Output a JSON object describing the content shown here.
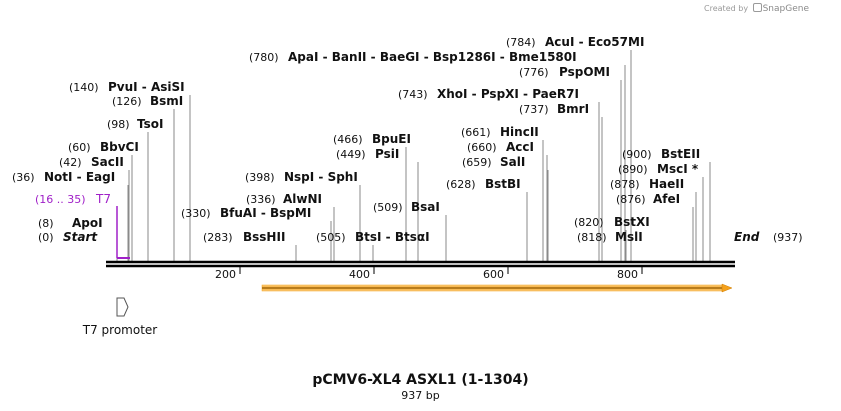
{
  "header": {
    "credit_text": "Created by",
    "brand": "SnapGene"
  },
  "map": {
    "title": "pCMV6-XL4 ASXL1 (1-1304)",
    "length_label": "937 bp",
    "start": {
      "label": "Start",
      "position": "(0)"
    },
    "end": {
      "label": "End",
      "position": "(937)"
    },
    "ticks": [
      "200",
      "400",
      "600",
      "800"
    ],
    "primer": {
      "range": "(16 .. 35)",
      "name": "T7"
    },
    "promoter": {
      "name": "T7 promoter"
    },
    "colors": {
      "primer": "#a020c8",
      "orf": "#f4a11c",
      "backbone": "#000000",
      "leader": "#8a8a8a"
    }
  },
  "sites": [
    {
      "pos": "(8)",
      "name": "ApoI"
    },
    {
      "pos": "(36)",
      "name": "NotI",
      "name2": "EagI"
    },
    {
      "pos": "(42)",
      "name": "SacII"
    },
    {
      "pos": "(60)",
      "name": "BbvCI"
    },
    {
      "pos": "(98)",
      "name": "TsoI"
    },
    {
      "pos": "(126)",
      "name": "BsmI"
    },
    {
      "pos": "(140)",
      "name": "PvuI",
      "name2": "AsiSI"
    },
    {
      "pos": "(283)",
      "name": "BssHII"
    },
    {
      "pos": "(330)",
      "name": "BfuAI",
      "name2": "BspMI"
    },
    {
      "pos": "(336)",
      "name": "AlwNI"
    },
    {
      "pos": "(398)",
      "name": "NspI",
      "name2": "SphI"
    },
    {
      "pos": "(505)",
      "name": "BtsI",
      "name2": "BtsαI"
    },
    {
      "pos": "(509)",
      "name": "BsaI"
    },
    {
      "pos": "(449)",
      "name": "PsiI"
    },
    {
      "pos": "(466)",
      "name": "BpuEI"
    },
    {
      "pos": "(628)",
      "name": "BstBI"
    },
    {
      "pos": "(659)",
      "name": "SalI"
    },
    {
      "pos": "(660)",
      "name": "AccI"
    },
    {
      "pos": "(661)",
      "name": "HincII"
    },
    {
      "pos": "(737)",
      "name": "BmrI"
    },
    {
      "pos": "(743)",
      "name": "XhoI",
      "name2": "PspXI",
      "name3": "PaeR7I"
    },
    {
      "pos": "(776)",
      "name": "PspOMI"
    },
    {
      "pos": "(780)",
      "name": "ApaI",
      "name2": "BanII",
      "name3": "BaeGI",
      "name4": "Bsp1286I",
      "name5": "Bme1580I"
    },
    {
      "pos": "(784)",
      "name": "AcuI",
      "name2": "Eco57MI"
    },
    {
      "pos": "(818)",
      "name": "MslI"
    },
    {
      "pos": "(820)",
      "name": "BstXI"
    },
    {
      "pos": "(876)",
      "name": "AfeI"
    },
    {
      "pos": "(878)",
      "name": "HaeII"
    },
    {
      "pos": "(890)",
      "name": "MscI *"
    },
    {
      "pos": "(900)",
      "name": "BstEII"
    }
  ]
}
